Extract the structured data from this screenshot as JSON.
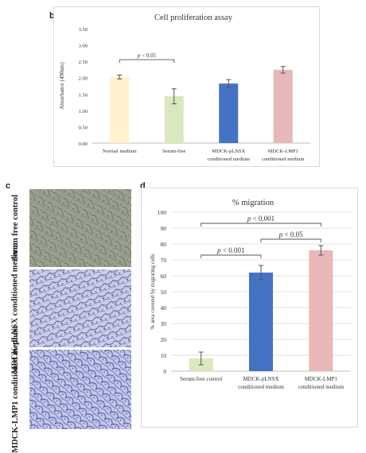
{
  "labels": {
    "b": "b",
    "c": "c",
    "d": "d"
  },
  "micrographs": [
    {
      "label": "Serum free control"
    },
    {
      "label": "MDCK-pLNSX conditioned medium"
    },
    {
      "label": "MDCK-LMP1 conditioned medium"
    }
  ],
  "chart_data": [
    {
      "id": "b",
      "type": "bar",
      "title": "Cell proliferation assay",
      "xlabel": "",
      "ylabel": "Absorbance (490nm)",
      "ylim": [
        0,
        3.5
      ],
      "yticks": [
        "0.00",
        "0.50",
        "1.00",
        "1.50",
        "2.00",
        "2.50",
        "3.00",
        "3.50"
      ],
      "grid": false,
      "categories": [
        "Normal medium",
        "Serum-free",
        "MDCK-pLNSX conditioned medium",
        "MDCK-LMP1 conditioned medium"
      ],
      "category_lines": [
        [
          "Normal medium"
        ],
        [
          "Serum-free"
        ],
        [
          "MDCK-pLNSX",
          "conditioned medium"
        ],
        [
          "MDCK-LMP1",
          "conditioned medium"
        ]
      ],
      "values": [
        2.02,
        1.43,
        1.82,
        2.24
      ],
      "errors": [
        0.06,
        0.23,
        0.12,
        0.1
      ],
      "colors": [
        "#fff2cc",
        "#d9e8bf",
        "#4472c4",
        "#e6b8b7"
      ],
      "annotations": [
        {
          "from": 0,
          "to": 1,
          "text": "p < 0.05"
        }
      ]
    },
    {
      "id": "d",
      "type": "bar",
      "title": "% migration",
      "xlabel": "",
      "ylabel": "% area covered by migrating cells",
      "ylim": [
        0,
        100
      ],
      "yticks": [
        "0",
        "10",
        "20",
        "30",
        "40",
        "50",
        "60",
        "70",
        "80",
        "90",
        "100"
      ],
      "grid": true,
      "categories": [
        "Serum-free control",
        "MDCK-pLNSX conditioned medium",
        "MDCK-LMP1 conditioned medium"
      ],
      "category_lines": [
        [
          "Serum-free control"
        ],
        [
          "MDCK-pLNSX",
          "conditioned medium"
        ],
        [
          "MDCK-LMP1",
          "conditioned medium"
        ]
      ],
      "values": [
        8,
        62,
        76
      ],
      "errors": [
        4,
        4.5,
        3
      ],
      "colors": [
        "#d9e8bf",
        "#4472c4",
        "#e6b8b7"
      ],
      "annotations": [
        {
          "from": 0,
          "to": 2,
          "text": "p < 0.001"
        },
        {
          "from": 0,
          "to": 1,
          "text": "p < 0.001"
        },
        {
          "from": 1,
          "to": 2,
          "text": "p < 0.05"
        }
      ]
    }
  ]
}
